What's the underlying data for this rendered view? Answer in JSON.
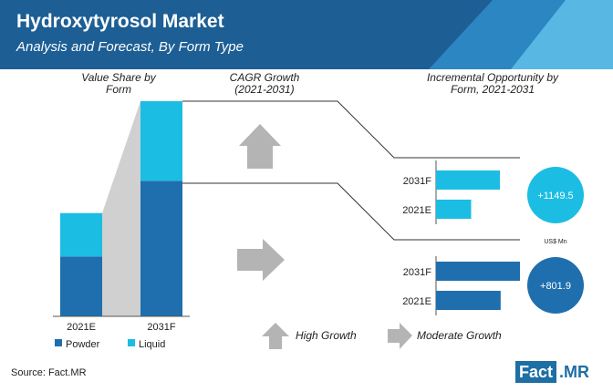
{
  "header": {
    "title": "Hydroxytyrosol Market",
    "subtitle": "Analysis and Forecast, By Form Type"
  },
  "sections": {
    "value_share": "Value Share by Form",
    "value_share_l1": "Value Share by",
    "value_share_l2": "Form",
    "cagr": "CAGR Growth (2021-2031)",
    "cagr_l1": "CAGR Growth",
    "cagr_l2": "(2021-2031)",
    "opportunity": "Incremental Opportunity by Form, 2021-2031",
    "opportunity_l1": "Incremental Opportunity by",
    "opportunity_l2": "Form, 2021-2031"
  },
  "legend_arrows": {
    "high": "High Growth",
    "moderate": "Moderate Growth"
  },
  "unit_label": "US$ Mn",
  "colors": {
    "powder": "#1f6fae",
    "liquid": "#1bbde3",
    "connector": "#d0d0d0",
    "arrow": "#b4b4b4",
    "header": "#1d5e94"
  },
  "footer": {
    "source": "Source: Fact.MR",
    "logo_left": "Fact",
    "logo_right": ".MR"
  },
  "chart_data": [
    {
      "type": "bar",
      "name_hint": "value share",
      "categories": [
        "2021E",
        "2031F"
      ],
      "series": [
        {
          "name": "Powder",
          "values": [
            58,
            63
          ]
        },
        {
          "name": "Liquid",
          "values": [
            42,
            37
          ]
        }
      ],
      "stacked": true,
      "totals": [
        100,
        100
      ],
      "relative_heights": [
        0.48,
        1.0
      ]
    },
    {
      "type": "bar",
      "orientation": "horizontal",
      "form": "Liquid",
      "categories": [
        "2031F",
        "2021E"
      ],
      "values": [
        100,
        55
      ],
      "growth": "High Growth",
      "incremental_opportunity": "+1149.5"
    },
    {
      "type": "bar",
      "orientation": "horizontal",
      "form": "Powder",
      "categories": [
        "2031F",
        "2021E"
      ],
      "values": [
        100,
        77
      ],
      "growth": "Moderate Growth",
      "incremental_opportunity": "+801.9"
    }
  ]
}
